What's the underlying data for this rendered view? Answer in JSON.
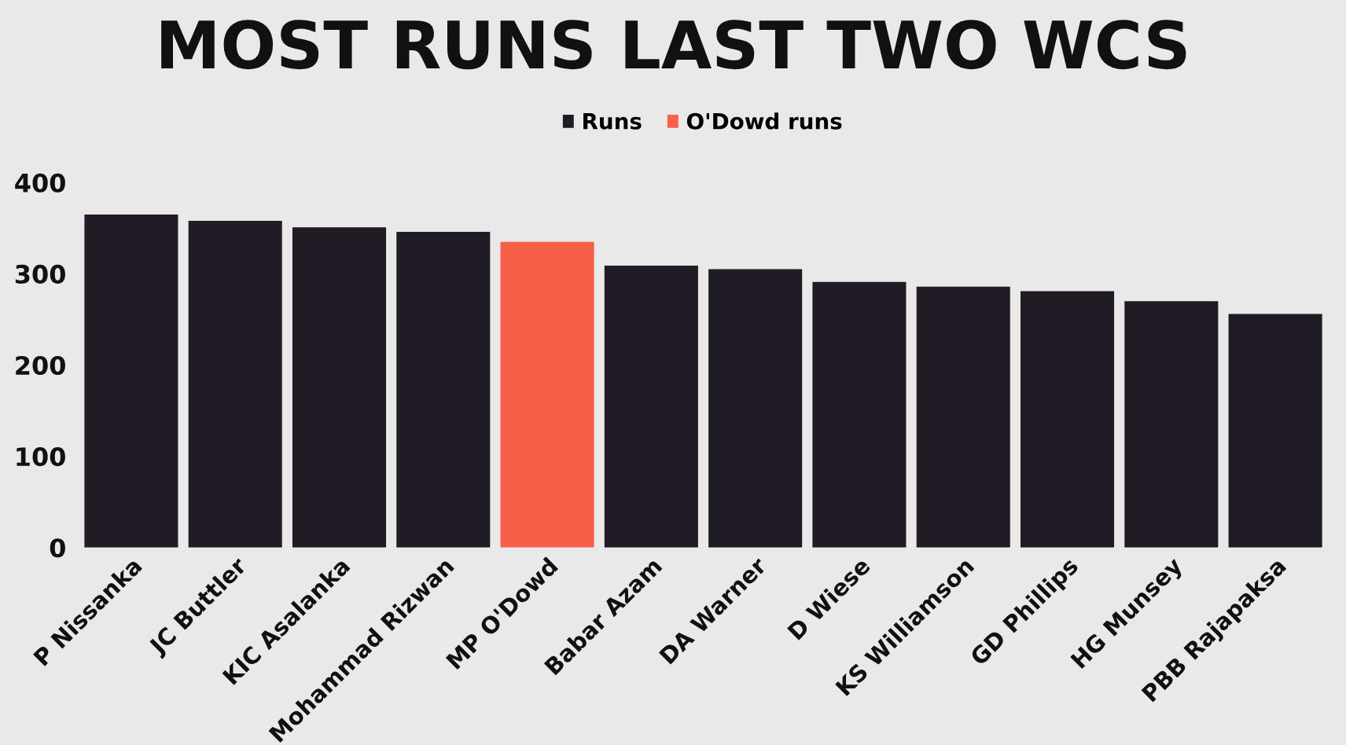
{
  "chart_data": {
    "type": "bar",
    "title": "MOST RUNS LAST TWO WCS",
    "categories": [
      "P Nissanka",
      "JC Buttler",
      "KIC Asalanka",
      "Mohammad Rizwan",
      "MP O'Dowd",
      "Babar Azam",
      "DA Warner",
      "D Wiese",
      "KS Williamson",
      "GD Phillips",
      "HG Munsey",
      "PBB Rajapaksa"
    ],
    "series": [
      {
        "name": "Runs",
        "color": "#201b24",
        "values": [
          365,
          358,
          351,
          346,
          null,
          309,
          305,
          291,
          286,
          281,
          270,
          256
        ]
      },
      {
        "name": "O'Dowd runs",
        "color": "#f76046",
        "values": [
          null,
          null,
          null,
          null,
          335,
          null,
          null,
          null,
          null,
          null,
          null,
          null
        ]
      }
    ],
    "ylim": [
      0,
      400
    ],
    "yticks": [
      0,
      100,
      200,
      300,
      400
    ],
    "grid": false,
    "legend": "top"
  }
}
